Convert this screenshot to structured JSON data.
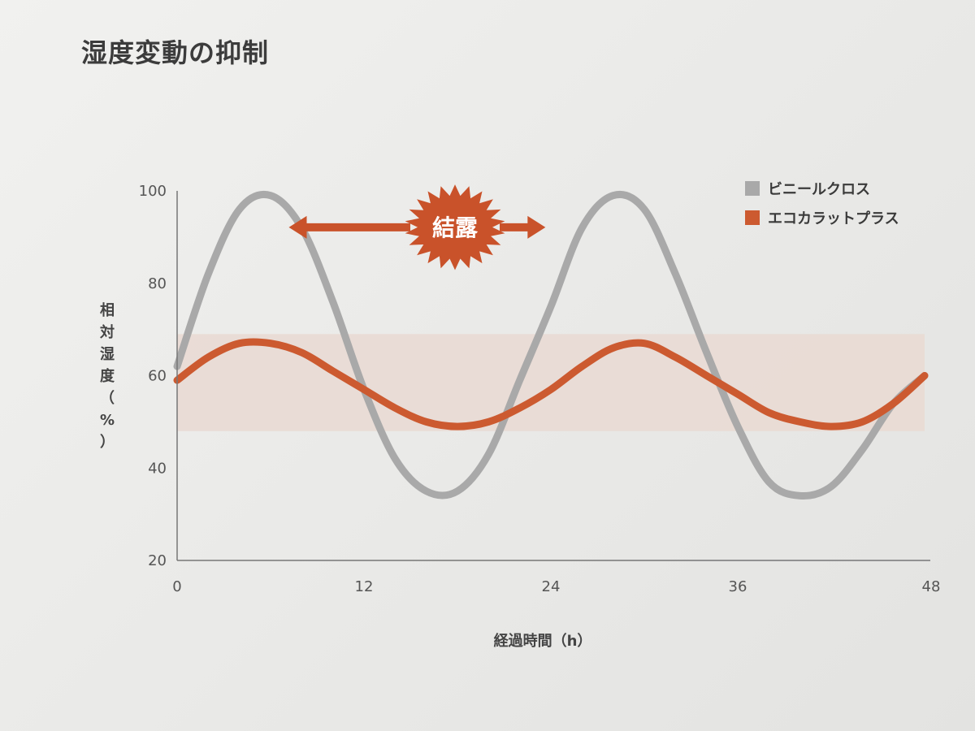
{
  "title": "湿度変動の抑制",
  "chart_data": {
    "type": "line",
    "xlabel": "経過時間（h）",
    "ylabel": [
      "相",
      "対",
      "湿",
      "度",
      "（",
      "%",
      "）"
    ],
    "xlim": [
      0,
      48
    ],
    "ylim": [
      20,
      100
    ],
    "xticks": [
      0,
      12,
      24,
      36,
      48
    ],
    "yticks": [
      20,
      40,
      60,
      80,
      100
    ],
    "grid": false,
    "legend_position": "top-right",
    "band": {
      "from": 48,
      "to": 69,
      "color": "#e9d9d2"
    },
    "annotation": {
      "label": "結露",
      "x_from": 9,
      "x_to": 26,
      "y": 93,
      "color": "#c9522a"
    },
    "series": [
      {
        "name": "ビニールクロス",
        "color": "#a9a9a9",
        "x": [
          0,
          2,
          4,
          6,
          8,
          10,
          12,
          14,
          16,
          18,
          20,
          22,
          24,
          26,
          28,
          30,
          32,
          34,
          36,
          38,
          40,
          42,
          44,
          46,
          48
        ],
        "values": [
          62,
          82,
          96,
          99,
          92,
          76,
          57,
          42,
          35,
          35,
          43,
          59,
          75,
          92,
          99,
          96,
          82,
          65,
          49,
          37,
          34,
          36,
          44,
          54,
          60
        ]
      },
      {
        "name": "エコカラットプラス",
        "color": "#cc5a30",
        "x": [
          0,
          2,
          4,
          6,
          8,
          10,
          12,
          14,
          16,
          18,
          20,
          22,
          24,
          26,
          28,
          30,
          32,
          34,
          36,
          38,
          40,
          42,
          44,
          46,
          48
        ],
        "values": [
          59,
          64,
          67,
          67,
          65,
          61,
          57,
          53,
          50,
          49,
          50,
          53,
          57,
          62,
          66,
          67,
          64,
          60,
          56,
          52,
          50,
          49,
          50,
          54,
          60
        ]
      }
    ]
  }
}
